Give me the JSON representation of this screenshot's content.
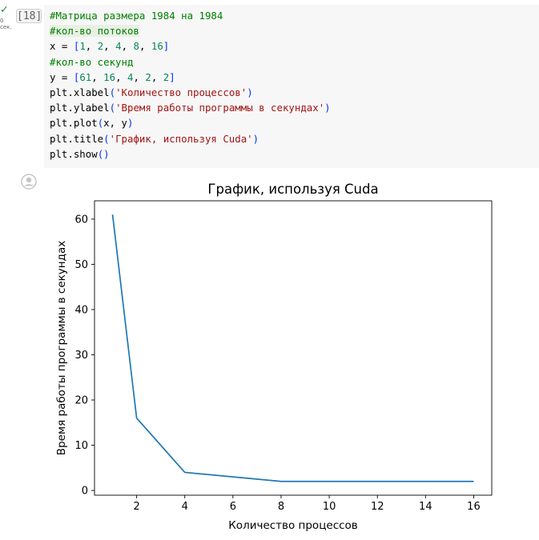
{
  "cell": {
    "status_icon": "check-icon",
    "exec_time": "0\nсек.",
    "execution_count": "[18]",
    "code_lines": [
      [
        {
          "t": "#Матрица размера 1984 на 1984",
          "c": "c-comment"
        }
      ],
      [
        {
          "t": "#кол-во потоков",
          "c": "c-comment hl"
        }
      ],
      [
        {
          "t": "x = ",
          "c": ""
        },
        {
          "t": "[",
          "c": "c-bracket"
        },
        {
          "t": "1",
          "c": "c-num"
        },
        {
          "t": ", ",
          "c": ""
        },
        {
          "t": "2",
          "c": "c-num"
        },
        {
          "t": ", ",
          "c": ""
        },
        {
          "t": "4",
          "c": "c-num"
        },
        {
          "t": ", ",
          "c": ""
        },
        {
          "t": "8",
          "c": "c-num"
        },
        {
          "t": ", ",
          "c": ""
        },
        {
          "t": "16",
          "c": "c-num"
        },
        {
          "t": "]",
          "c": "c-bracket"
        }
      ],
      [
        {
          "t": "#кол-во секунд",
          "c": "c-comment"
        }
      ],
      [
        {
          "t": "y = ",
          "c": ""
        },
        {
          "t": "[",
          "c": "c-bracket"
        },
        {
          "t": "61",
          "c": "c-num"
        },
        {
          "t": ", ",
          "c": ""
        },
        {
          "t": "16",
          "c": "c-num"
        },
        {
          "t": ", ",
          "c": ""
        },
        {
          "t": "4",
          "c": "c-num"
        },
        {
          "t": ", ",
          "c": ""
        },
        {
          "t": "2",
          "c": "c-num"
        },
        {
          "t": ", ",
          "c": ""
        },
        {
          "t": "2",
          "c": "c-num"
        },
        {
          "t": "]",
          "c": "c-bracket"
        }
      ],
      [
        {
          "t": "plt.xlabel",
          "c": ""
        },
        {
          "t": "(",
          "c": "c-bracket"
        },
        {
          "t": "'Количество процессов'",
          "c": "c-str"
        },
        {
          "t": ")",
          "c": "c-bracket"
        }
      ],
      [
        {
          "t": "plt.ylabel",
          "c": ""
        },
        {
          "t": "(",
          "c": "c-bracket"
        },
        {
          "t": "'Время работы программы в секундах'",
          "c": "c-str"
        },
        {
          "t": ")",
          "c": "c-bracket"
        }
      ],
      [
        {
          "t": "plt.plot",
          "c": ""
        },
        {
          "t": "(",
          "c": "c-bracket"
        },
        {
          "t": "x, y",
          "c": ""
        },
        {
          "t": ")",
          "c": "c-bracket"
        }
      ],
      [
        {
          "t": "plt.title",
          "c": ""
        },
        {
          "t": "(",
          "c": "c-bracket"
        },
        {
          "t": "'График, используя Cuda'",
          "c": "c-str"
        },
        {
          "t": ")",
          "c": "c-bracket"
        }
      ],
      [
        {
          "t": "plt.show",
          "c": ""
        },
        {
          "t": "()",
          "c": "c-bracket"
        }
      ]
    ]
  },
  "output": {
    "avatar_icon": "user-avatar-icon"
  },
  "chart_data": {
    "type": "line",
    "title": "График, используя Cuda",
    "xlabel": "Количество процессов",
    "ylabel": "Время работы программы в секундах",
    "x": [
      1,
      2,
      4,
      8,
      16
    ],
    "series": [
      {
        "values": [
          61,
          16,
          4,
          2,
          2
        ],
        "color": "#1f77b4"
      }
    ],
    "xticks": [
      2,
      4,
      6,
      8,
      10,
      12,
      14,
      16
    ],
    "yticks": [
      0,
      10,
      20,
      30,
      40,
      50,
      60
    ],
    "xlim": [
      0.25,
      16.75
    ],
    "ylim": [
      -1.05,
      64.05
    ],
    "grid": false,
    "legend": "none"
  }
}
